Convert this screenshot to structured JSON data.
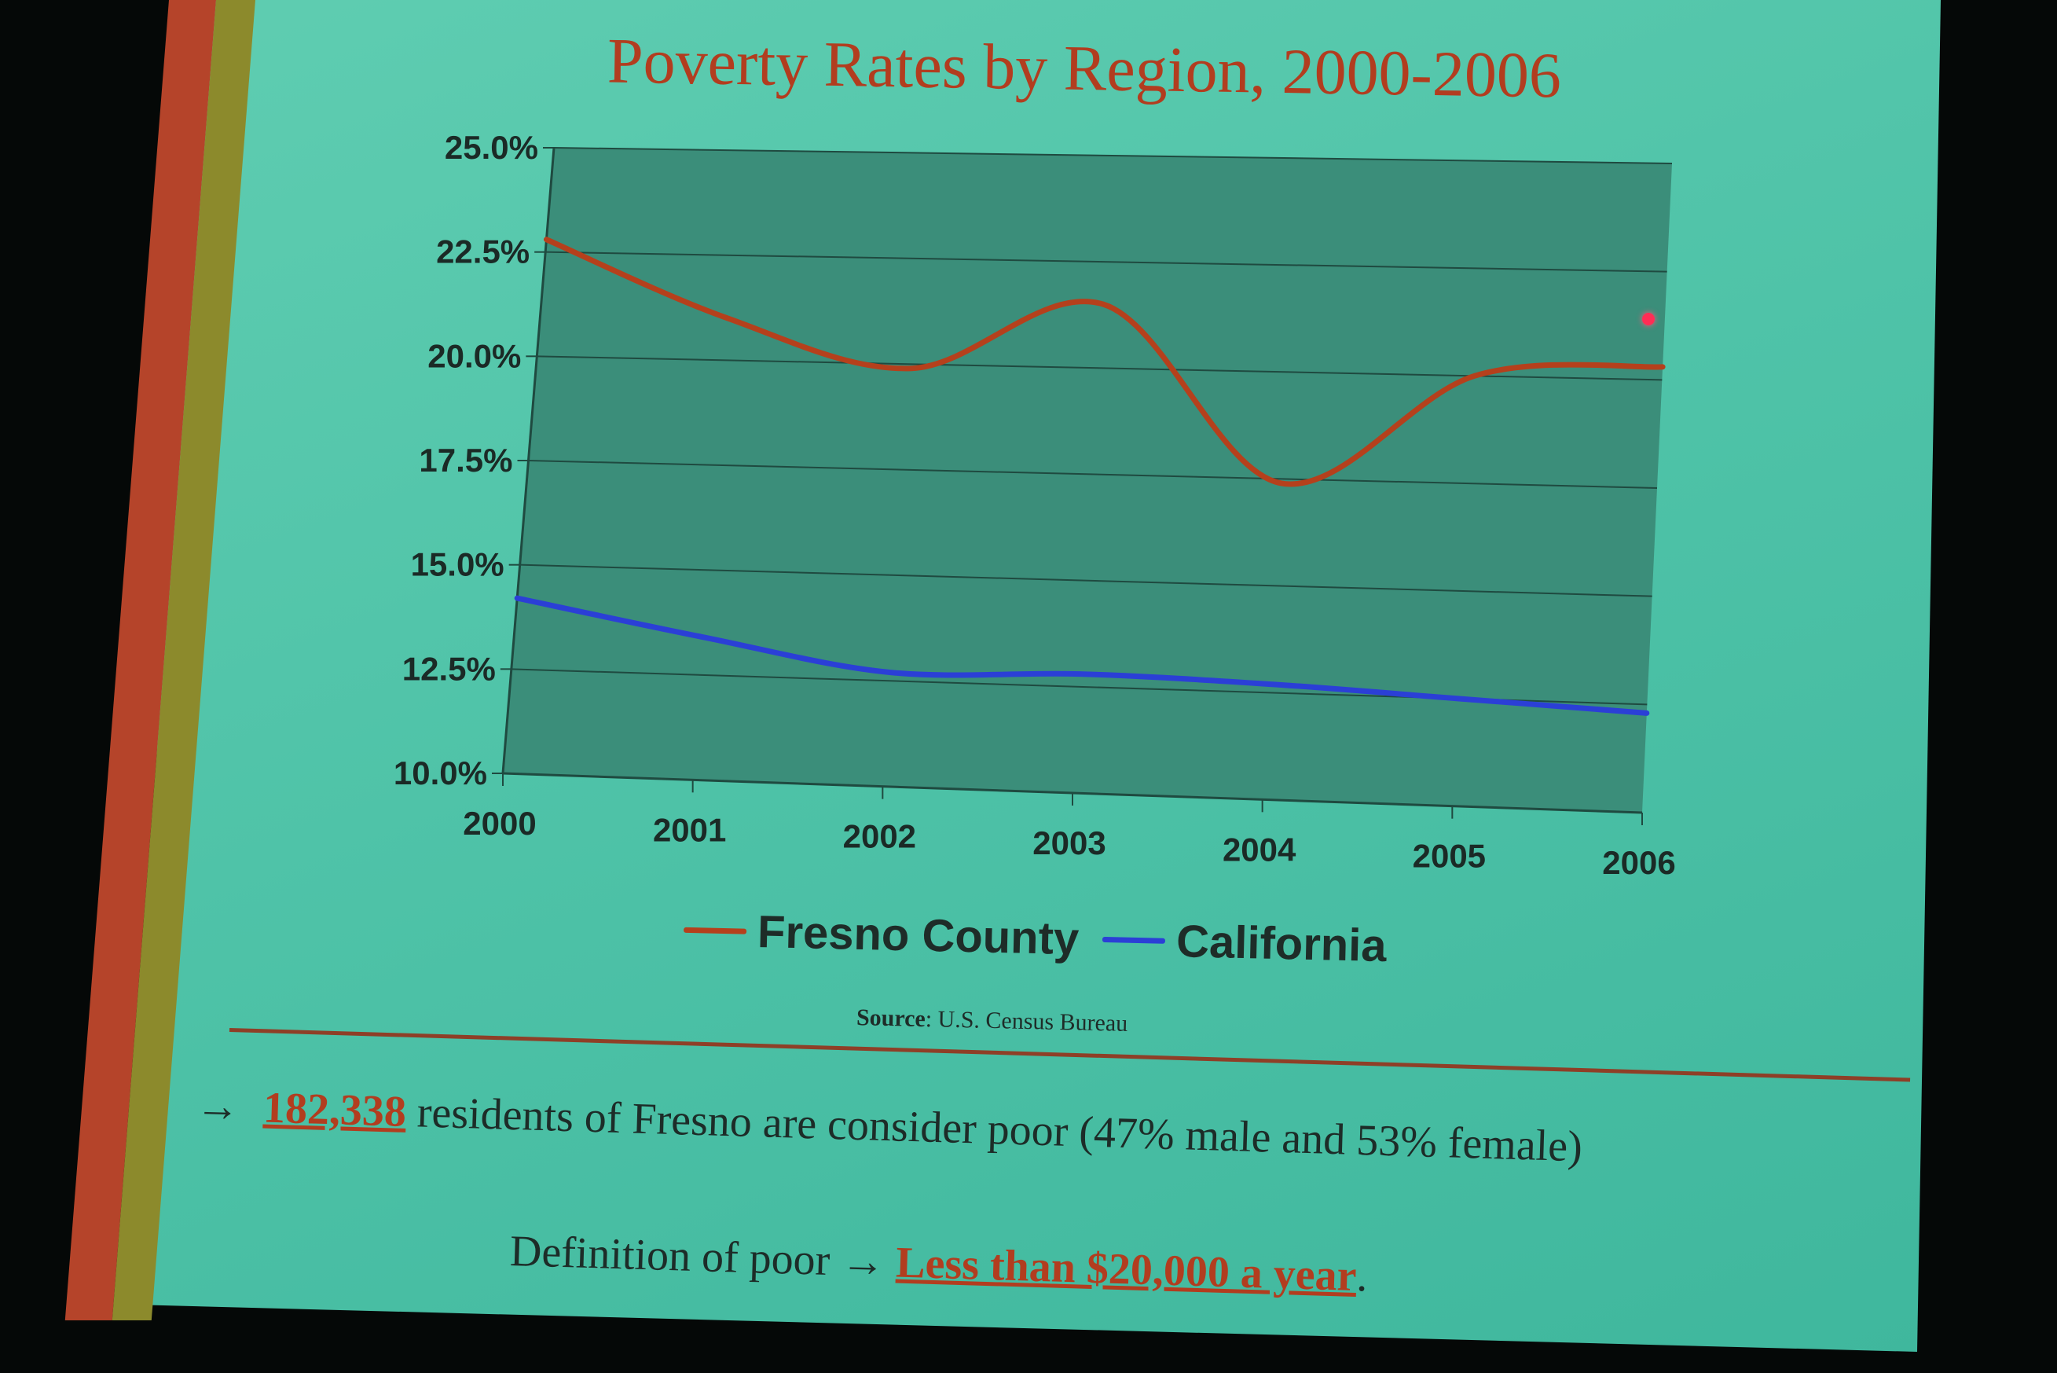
{
  "chart_data": {
    "type": "line",
    "title": "Poverty Rates by Region, 2000-2006",
    "x": [
      "2000",
      "2001",
      "2002",
      "2003",
      "2004",
      "2005",
      "2006"
    ],
    "yticks": [
      "10.0%",
      "12.5%",
      "15.0%",
      "17.5%",
      "20.0%",
      "22.5%",
      "25.0%"
    ],
    "ylim": [
      10,
      25
    ],
    "grid": true,
    "legend_position": "bottom",
    "series": [
      {
        "name": "Fresno County",
        "color": "#b5401c",
        "values": [
          22.8,
          21.0,
          19.9,
          21.5,
          17.4,
          20.0,
          20.3
        ]
      },
      {
        "name": "California",
        "color": "#2b3fd6",
        "values": [
          14.2,
          13.4,
          12.7,
          12.8,
          12.7,
          12.5,
          12.3
        ]
      }
    ]
  },
  "source": {
    "label": "Source",
    "text": ": U.S. Census Bureau"
  },
  "fact": {
    "arrow": "→",
    "number": "182,338",
    "text": "residents of Fresno are consider poor (47% male and 53% female)"
  },
  "definition": {
    "label": "Definition of poor",
    "arrow": "→",
    "value": "Less than $20,000 a year",
    "tail": "."
  },
  "colors": {
    "title": "#b23d1f",
    "accent_red": "#b5442a",
    "accent_olive": "#8c8a2c",
    "slide_bg": "#4fc3a8",
    "plot_bg": "#3d8f7c"
  }
}
